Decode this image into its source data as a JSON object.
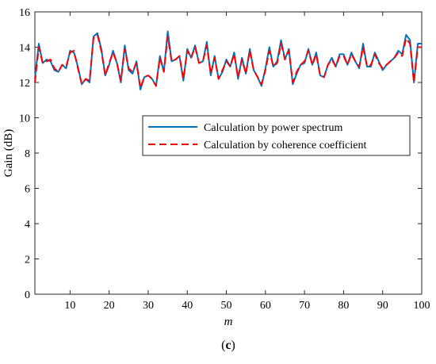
{
  "chart_data": {
    "type": "line",
    "xlabel": "m",
    "ylabel": "Gain (dB)",
    "caption_open": "(",
    "caption_letter": "c",
    "caption_close": ")",
    "xlim": [
      1,
      100
    ],
    "ylim": [
      0,
      16
    ],
    "xticks": [
      10,
      20,
      30,
      40,
      50,
      60,
      70,
      80,
      90,
      100
    ],
    "yticks": [
      0,
      2,
      4,
      6,
      8,
      10,
      12,
      14,
      16
    ],
    "grid": false,
    "legend_position": "center-right",
    "x": [
      1,
      2,
      3,
      4,
      5,
      6,
      7,
      8,
      9,
      10,
      11,
      12,
      13,
      14,
      15,
      16,
      17,
      18,
      19,
      20,
      21,
      22,
      23,
      24,
      25,
      26,
      27,
      28,
      29,
      30,
      31,
      32,
      33,
      34,
      35,
      36,
      37,
      38,
      39,
      40,
      41,
      42,
      43,
      44,
      45,
      46,
      47,
      48,
      49,
      50,
      51,
      52,
      53,
      54,
      55,
      56,
      57,
      58,
      59,
      60,
      61,
      62,
      63,
      64,
      65,
      66,
      67,
      68,
      69,
      70,
      71,
      72,
      73,
      74,
      75,
      76,
      77,
      78,
      79,
      80,
      81,
      82,
      83,
      84,
      85,
      86,
      87,
      88,
      89,
      90,
      91,
      92,
      93,
      94,
      95,
      96,
      97,
      98,
      99,
      100
    ],
    "series": [
      {
        "name": "Calculation by power spectrum",
        "color": "#0072BD",
        "dash": "solid",
        "values": [
          12.2,
          14.2,
          13.1,
          13.3,
          13.2,
          12.7,
          12.6,
          13.0,
          12.8,
          13.8,
          13.7,
          12.9,
          11.9,
          12.2,
          12.0,
          14.6,
          14.8,
          13.9,
          12.4,
          13.0,
          13.8,
          13.1,
          12.0,
          14.1,
          12.7,
          12.5,
          13.2,
          11.6,
          12.3,
          12.4,
          12.2,
          11.8,
          13.5,
          12.6,
          14.9,
          13.2,
          13.3,
          13.5,
          12.1,
          13.9,
          13.4,
          14.1,
          13.1,
          13.2,
          14.3,
          12.4,
          13.5,
          12.2,
          12.6,
          13.3,
          12.9,
          13.7,
          12.2,
          13.4,
          12.5,
          13.9,
          12.7,
          12.3,
          11.8,
          12.8,
          14.0,
          12.9,
          13.2,
          14.4,
          13.3,
          13.9,
          11.9,
          12.5,
          13.0,
          13.1,
          13.9,
          13.0,
          13.7,
          12.4,
          12.3,
          13.0,
          13.4,
          12.9,
          13.6,
          13.6,
          13.0,
          13.7,
          13.2,
          12.8,
          14.2,
          12.9,
          12.9,
          13.7,
          13.2,
          12.7,
          13.0,
          13.2,
          13.4,
          13.8,
          13.6,
          14.7,
          14.4,
          12.0,
          14.2,
          14.2
        ]
      },
      {
        "name": "Calculation by coherence coefficient",
        "color": "#FF0000",
        "dash": "dashed",
        "values": [
          12.0,
          14.0,
          13.1,
          13.2,
          13.3,
          12.8,
          12.6,
          13.0,
          12.9,
          13.7,
          13.8,
          12.8,
          11.9,
          12.2,
          12.1,
          14.5,
          14.7,
          13.8,
          12.4,
          13.1,
          13.7,
          13.1,
          12.1,
          13.9,
          12.8,
          12.6,
          13.1,
          11.7,
          12.3,
          12.4,
          12.2,
          11.8,
          13.4,
          12.6,
          14.6,
          13.2,
          13.3,
          13.5,
          12.2,
          13.8,
          13.4,
          14.0,
          13.1,
          13.2,
          14.1,
          12.5,
          13.4,
          12.2,
          12.7,
          13.2,
          12.9,
          13.6,
          12.3,
          13.3,
          12.5,
          13.8,
          12.7,
          12.3,
          11.9,
          12.7,
          13.8,
          12.9,
          13.1,
          14.2,
          13.3,
          13.8,
          12.0,
          12.6,
          13.0,
          13.2,
          13.8,
          13.0,
          13.6,
          12.4,
          12.3,
          13.0,
          13.3,
          12.9,
          13.5,
          13.5,
          13.0,
          13.6,
          13.2,
          12.9,
          14.0,
          12.9,
          13.0,
          13.6,
          13.1,
          12.8,
          13.0,
          13.2,
          13.4,
          13.7,
          13.5,
          14.5,
          14.2,
          12.0,
          14.0,
          14.0
        ]
      }
    ]
  }
}
